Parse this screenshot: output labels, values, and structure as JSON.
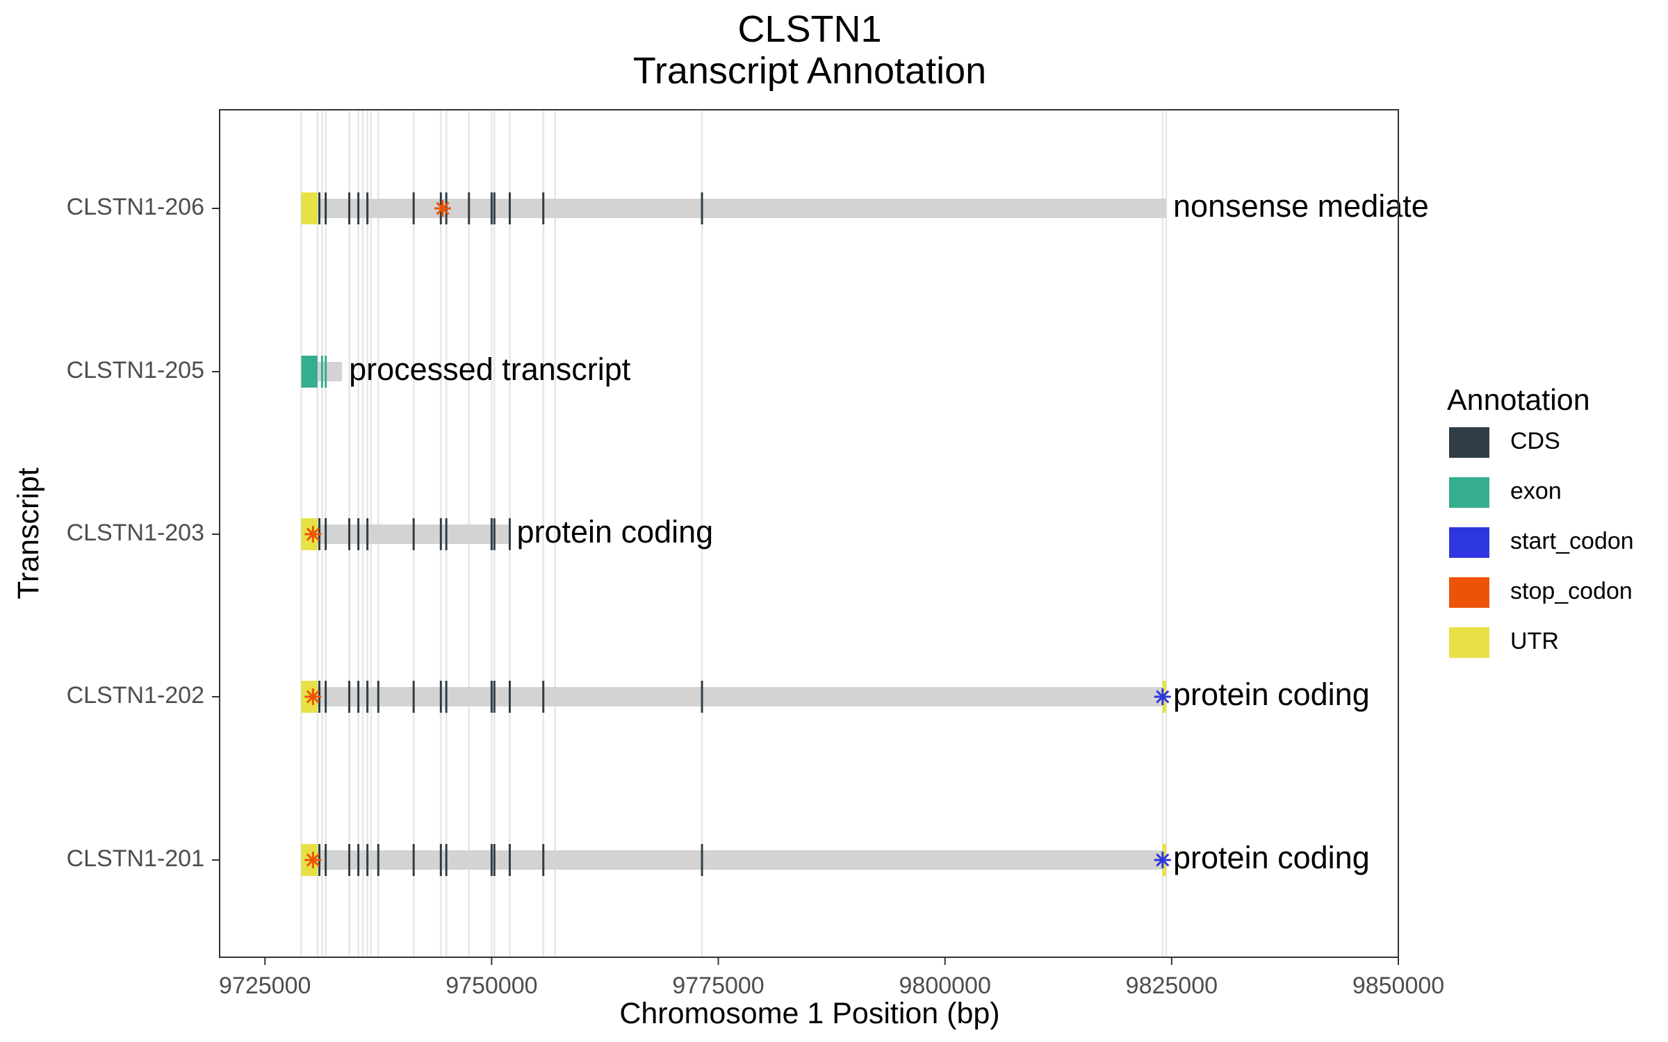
{
  "chart_data": {
    "type": "gene-track",
    "title": "CLSTN1",
    "subtitle": "Transcript Annotation",
    "xlabel": "Chromosome 1 Position (bp)",
    "ylabel": "Transcript",
    "xlim": [
      9720000,
      9850000
    ],
    "xticks": [
      "9725000",
      "9750000",
      "9775000",
      "9800000",
      "9825000",
      "9850000"
    ],
    "xtick_values": [
      9725000,
      9750000,
      9775000,
      9800000,
      9825000,
      9850000
    ],
    "transcripts": [
      {
        "name": "CLSTN1-206",
        "label": "nonsense mediate",
        "start": 9729000,
        "end": 9824400,
        "utr": [
          [
            9729000,
            9730800
          ]
        ],
        "exons": [],
        "cds": [
          9731000,
          9731700,
          9734300,
          9735300,
          9736300,
          9741400,
          9744400,
          9745000,
          9747500,
          9750000,
          9750300,
          9752000,
          9755700,
          9773200
        ],
        "stop_codon": [
          9744600
        ],
        "start_codon": []
      },
      {
        "name": "CLSTN1-205",
        "label": "processed transcript",
        "start": 9729000,
        "end": 9733500,
        "utr": [],
        "exons": [
          [
            9729000,
            9730800
          ],
          9731300,
          9731700
        ],
        "cds": [],
        "stop_codon": [],
        "start_codon": []
      },
      {
        "name": "CLSTN1-203",
        "label": "protein coding",
        "start": 9729000,
        "end": 9752000,
        "utr": [
          [
            9729000,
            9730800
          ]
        ],
        "exons": [],
        "cds": [
          9731000,
          9731700,
          9734300,
          9735300,
          9736300,
          9741400,
          9744400,
          9745000,
          9750000,
          9750300,
          9752000
        ],
        "stop_codon": [
          9730300
        ],
        "start_codon": []
      },
      {
        "name": "CLSTN1-202",
        "label": "protein coding",
        "start": 9729000,
        "end": 9824400,
        "utr": [
          [
            9729000,
            9730800
          ],
          [
            9824000,
            9824400
          ]
        ],
        "exons": [],
        "cds": [
          9731000,
          9731700,
          9734300,
          9735300,
          9736300,
          9737500,
          9741400,
          9744400,
          9745000,
          9750000,
          9750300,
          9752000,
          9755700,
          9773200
        ],
        "stop_codon": [
          9730300
        ],
        "start_codon": [
          9824000
        ]
      },
      {
        "name": "CLSTN1-201",
        "label": "protein coding",
        "start": 9729000,
        "end": 9824400,
        "utr": [
          [
            9729000,
            9730800
          ],
          [
            9824000,
            9824400
          ]
        ],
        "exons": [],
        "cds": [
          9731000,
          9731700,
          9734300,
          9735300,
          9736300,
          9737500,
          9741400,
          9744400,
          9745000,
          9750000,
          9750300,
          9752000,
          9755700,
          9773200
        ],
        "stop_codon": [
          9730300
        ],
        "start_codon": [
          9824000
        ]
      }
    ],
    "guide_lines": [
      9729000,
      9730800,
      9731300,
      9731700,
      9734300,
      9735300,
      9735800,
      9736300,
      9736700,
      9737500,
      9741400,
      9744400,
      9745000,
      9747500,
      9750000,
      9750300,
      9752000,
      9755700,
      9757000,
      9773200,
      9824000,
      9824400
    ],
    "legend": {
      "title": "Annotation",
      "entries": [
        {
          "label": "CDS",
          "color": "#2f3d46"
        },
        {
          "label": "exon",
          "color": "#35ae8f"
        },
        {
          "label": "start_codon",
          "color": "#2e36e0"
        },
        {
          "label": "stop_codon",
          "color": "#ec5308"
        },
        {
          "label": "UTR",
          "color": "#e7e146"
        }
      ]
    },
    "colors": {
      "intron": "#d3d3d3",
      "guide": "#e6e6e6",
      "panel_border": "#333333"
    }
  }
}
